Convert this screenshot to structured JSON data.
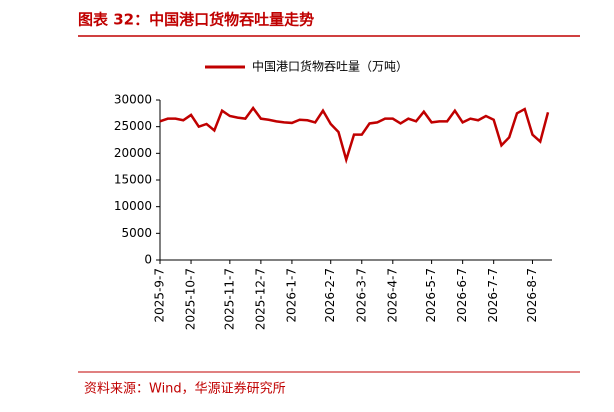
{
  "header": {
    "title": "图表 32：中国港口货物吞吐量走势"
  },
  "chart_data": {
    "type": "line",
    "categories": [
      "2025-9-7",
      null,
      null,
      null,
      "2025-10-7",
      null,
      null,
      null,
      null,
      "2025-11-7",
      null,
      null,
      null,
      "2025-12-7",
      null,
      null,
      null,
      "2026-1-7",
      null,
      null,
      null,
      null,
      "2026-2-7",
      null,
      null,
      null,
      "2026-3-7",
      null,
      null,
      null,
      "2026-4-7",
      null,
      null,
      null,
      null,
      "2026-5-7",
      null,
      null,
      null,
      "2026-6-7",
      null,
      null,
      null,
      "2026-7-7",
      null,
      null,
      null,
      null,
      "2026-8-7",
      null,
      null
    ],
    "series": [
      {
        "name": "中国港口货物吞吐量（万吨）",
        "color": "#c00000",
        "values": [
          26000,
          26500,
          26500,
          26200,
          27200,
          25000,
          25500,
          24300,
          28000,
          27000,
          26700,
          26500,
          28500,
          26500,
          26300,
          26000,
          25800,
          25700,
          26300,
          26200,
          25800,
          28000,
          25500,
          24000,
          18800,
          23500,
          23500,
          25600,
          25800,
          26500,
          26500,
          25600,
          26500,
          26000,
          27800,
          25800,
          26000,
          26000,
          28000,
          25800,
          26500,
          26200,
          27000,
          26300,
          21500,
          23000,
          27500,
          28300,
          23500,
          22200,
          27700
        ]
      }
    ],
    "ylim": [
      0,
      30000
    ],
    "yticks": [
      0,
      5000,
      10000,
      15000,
      20000,
      25000,
      30000
    ],
    "legend": "top"
  },
  "footer": {
    "source": "资料来源：Wind，华源证券研究所"
  }
}
